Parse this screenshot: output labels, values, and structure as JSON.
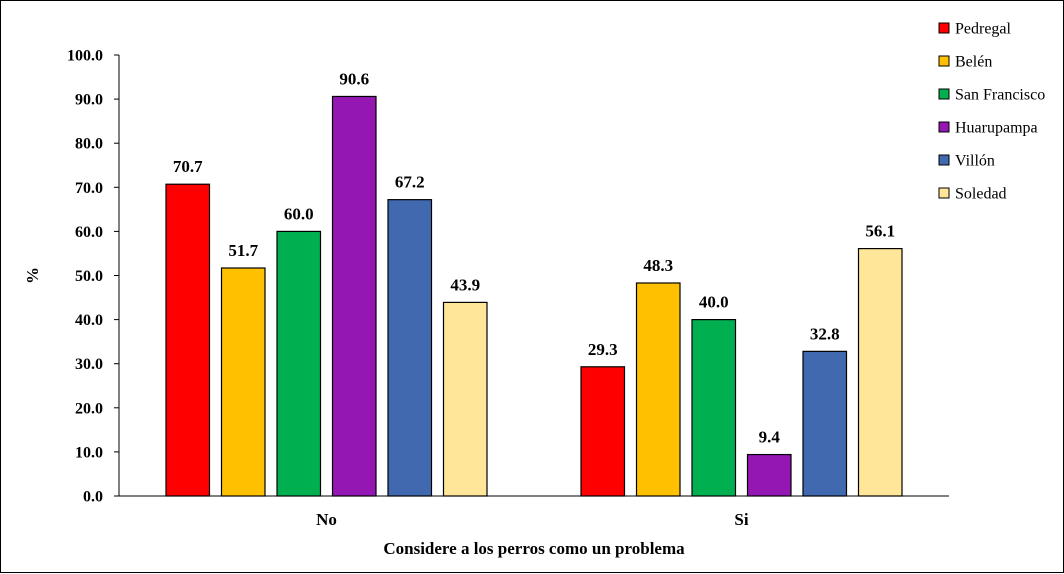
{
  "chart_data": {
    "type": "bar",
    "categories": [
      "No",
      "Si"
    ],
    "series": [
      {
        "name": "Pedregal",
        "values": [
          70.7,
          29.3
        ],
        "color": "#ff0000"
      },
      {
        "name": "Belén",
        "values": [
          51.7,
          48.3
        ],
        "color": "#ffc000"
      },
      {
        "name": "San Francisco",
        "values": [
          60.0,
          40.0
        ],
        "color": "#00b050"
      },
      {
        "name": "Huarupampa",
        "values": [
          90.6,
          9.4
        ],
        "color": "#9417b4"
      },
      {
        "name": "Villón",
        "values": [
          67.2,
          32.8
        ],
        "color": "#4169b0"
      },
      {
        "name": "Soledad",
        "values": [
          43.9,
          56.1
        ],
        "color": "#ffe699"
      }
    ],
    "ylim": [
      0,
      100
    ],
    "yticks": [
      "0.0",
      "10.0",
      "20.0",
      "30.0",
      "40.0",
      "50.0",
      "60.0",
      "70.0",
      "80.0",
      "90.0",
      "100.0"
    ],
    "xlabel": "Considere a los perros como un problema",
    "ylabel": "%",
    "grid": false,
    "legend_position": "right"
  }
}
